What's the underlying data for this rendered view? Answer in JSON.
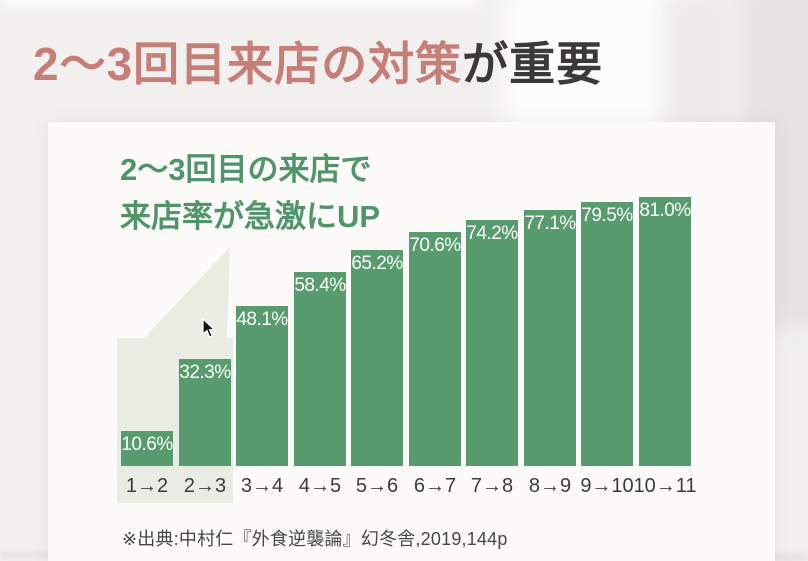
{
  "slide": {
    "title": {
      "highlight": "2〜3回目来店の対策",
      "rest": "が重要"
    },
    "annotation": {
      "line1": "2〜3回目の来店で",
      "line2": "来店率が急激にUP"
    },
    "source": "※出典:中村仁『外食逆襲論』幻冬舎,2019,144p"
  },
  "colors": {
    "bg_base": "#f1f0ef",
    "title_accent": "#c67e78",
    "title_dark": "#3b393a",
    "green_text": "#4f9569",
    "bar_green": "#579b6e",
    "highlight_bg": "#e9ece3"
  },
  "chart_data": {
    "type": "bar",
    "categories": [
      "1→2",
      "2→3",
      "3→4",
      "4→5",
      "5→6",
      "6→7",
      "7→8",
      "8→9",
      "9→10",
      "10→11"
    ],
    "values": [
      10.6,
      32.3,
      48.1,
      58.4,
      65.2,
      70.6,
      74.2,
      77.1,
      79.5,
      81.0
    ],
    "labels": [
      "10.6%",
      "32.3%",
      "48.1%",
      "58.4%",
      "65.2%",
      "70.6%",
      "74.2%",
      "77.1%",
      "79.5%",
      "81.0%"
    ],
    "title": "",
    "xlabel": "",
    "ylabel": "",
    "ylim": [
      0,
      100
    ],
    "grid": false,
    "legend": false,
    "axes_visible": false,
    "value_labels_position": "inside-top",
    "value_label_color": "#fdfefd",
    "bar_color": "#579b6e",
    "highlighted_categories": [
      "1→2",
      "2→3"
    ],
    "highlight_color": "#e9ece3",
    "highlight_note": "callout wedge points from annotation text to highlighted bars"
  }
}
